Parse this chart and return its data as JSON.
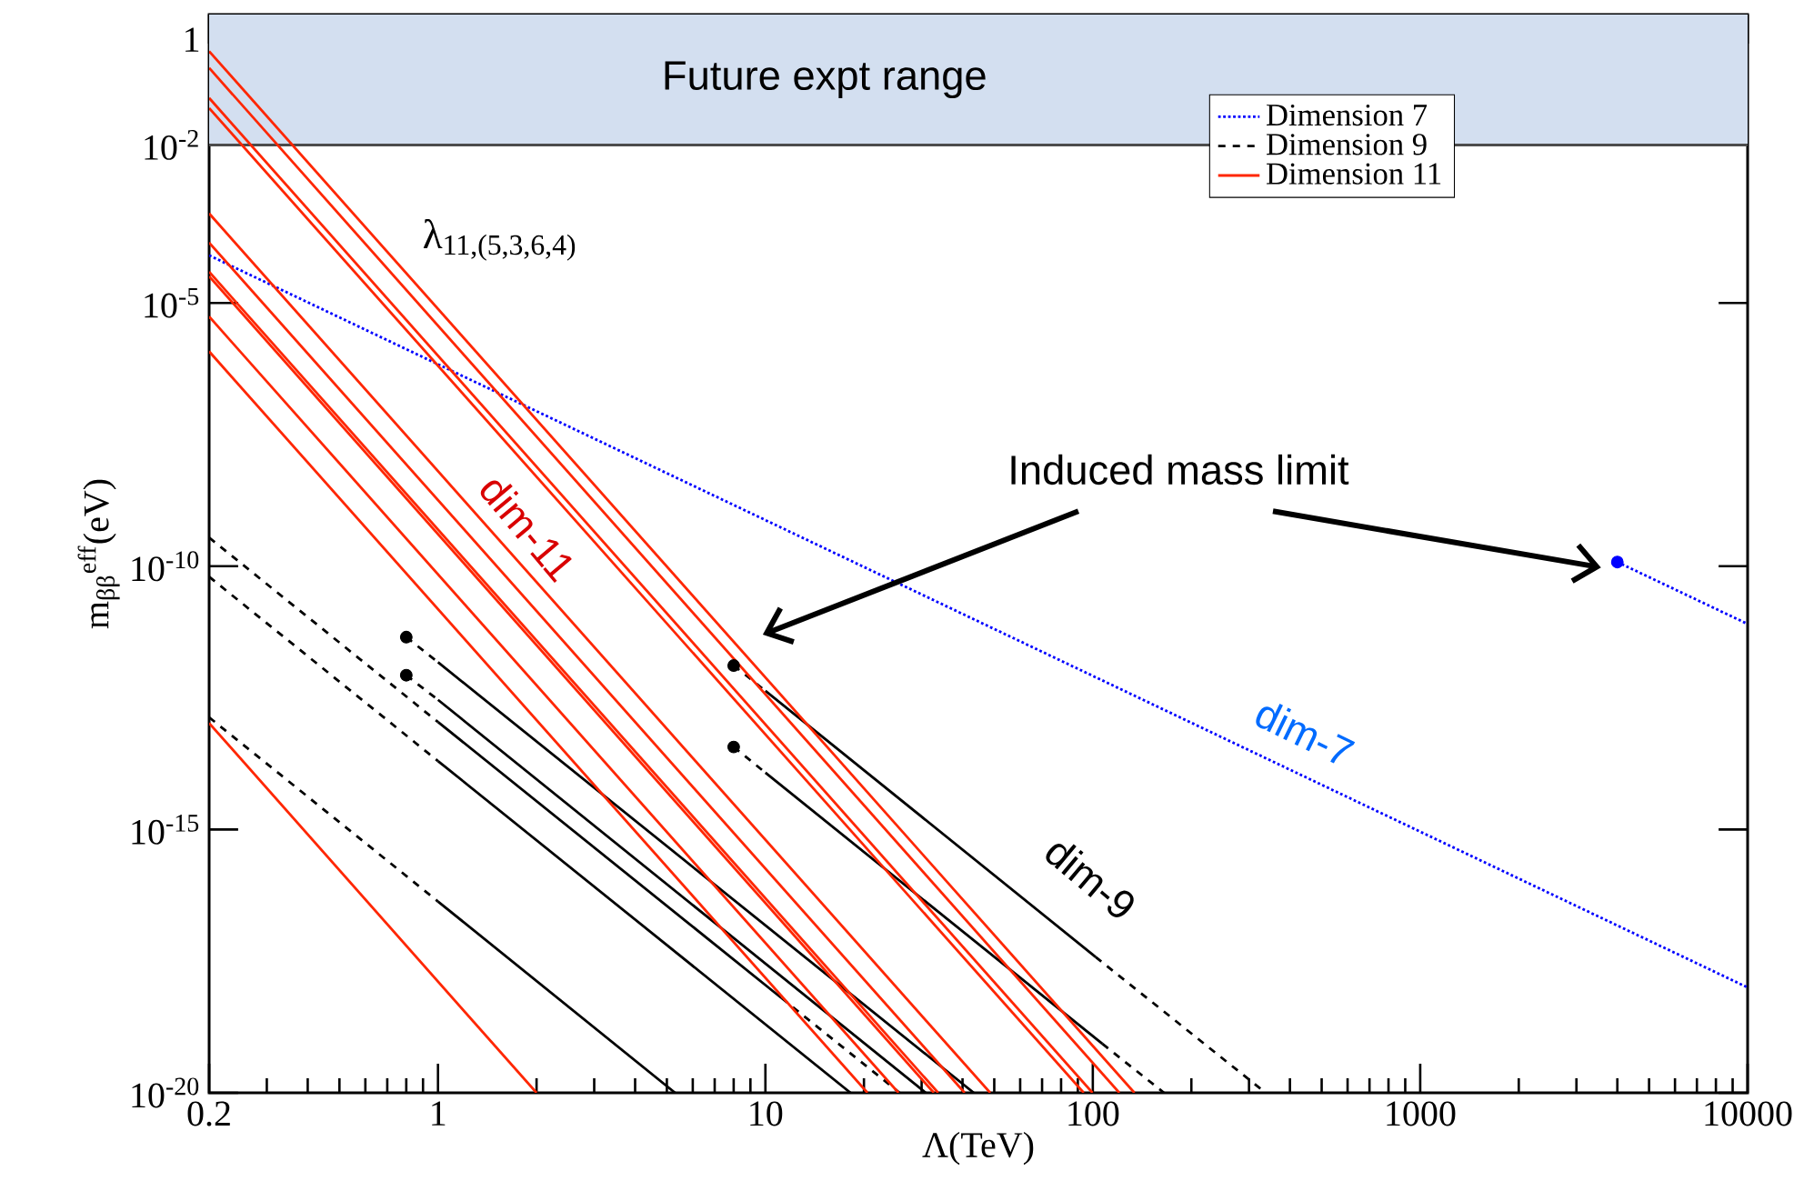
{
  "chart_data": {
    "type": "line",
    "xlabel": "Λ(TeV)",
    "ylabel": "m$_{ββ}$$^{eff}$(eV)",
    "log": "xy",
    "legend": "top right",
    "xlim": [
      0.2,
      10000
    ],
    "ylim": [
      1e-20,
      3
    ],
    "xticks": [
      0.2,
      1,
      10,
      100,
      1000,
      10000
    ],
    "yticks": [
      {
        "value": 1e-20,
        "label": "10$^{-20}$"
      },
      {
        "value": 1e-15,
        "label": "10$^{-15}$"
      },
      {
        "value": 1e-10,
        "label": "10$^{-10}$"
      },
      {
        "value": 1e-05,
        "label": "10$^{-5}$"
      },
      {
        "value": 0.01,
        "label": "10$^{-2}$"
      },
      1
    ],
    "bands": [
      {
        "axis": "y",
        "from": 0.01,
        "to": 3,
        "label": "Future expt range",
        "color": "#d3dff0"
      }
    ],
    "annotations": [
      "λ$_{11,(5,3,6,4)}$",
      "dim-11",
      "dim-7",
      "dim-9",
      "Induced mass limit"
    ],
    "series": [
      {
        "name": "Dimension 7",
        "color": "#0000ff",
        "line_style": "dotted",
        "x": [
          0.2,
          10000
        ],
        "values": [
          8e-05,
          1e-18
        ]
      },
      {
        "color": "#0000ff",
        "line_style": "dotted",
        "x": [
          4000,
          10000
        ],
        "values": [
          1.2e-10,
          8e-12
        ]
      },
      {
        "name": "Dimension 9",
        "color": "#000000",
        "line_style": "dashed",
        "x": [
          0.2,
          1
        ],
        "values": [
          3.5e-10,
          1.1e-13
        ]
      },
      {
        "color": "#000000",
        "line_style": "solid",
        "x": [
          1,
          11.2
        ],
        "values": [
          1.1e-13,
          6.3e-19
        ]
      },
      {
        "color": "#000000",
        "line_style": "dashed",
        "x": [
          11.2,
          25.7
        ],
        "values": [
          6.3e-19,
          1e-20
        ]
      },
      {
        "color": "#000000",
        "line_style": "dashed",
        "x": [
          0.2,
          1
        ],
        "values": [
          6.3e-11,
          2e-14
        ]
      },
      {
        "color": "#000000",
        "line_style": "solid",
        "x": [
          1,
          18.2
        ],
        "values": [
          2e-14,
          1e-20
        ]
      },
      {
        "color": "#000000",
        "line_style": "dashed",
        "x": [
          0.2,
          1
        ],
        "values": [
          1.35e-13,
          4.3e-17
        ]
      },
      {
        "color": "#000000",
        "line_style": "solid",
        "x": [
          1,
          5.3
        ],
        "values": [
          4.3e-17,
          1e-20
        ]
      },
      {
        "color": "#000000",
        "line_style": "dashed",
        "x": [
          0.8,
          1
        ],
        "values": [
          4.5e-12,
          1.5e-12
        ]
      },
      {
        "color": "#000000",
        "line_style": "solid",
        "x": [
          1,
          43.3
        ],
        "values": [
          1.5e-12,
          1e-20
        ]
      },
      {
        "color": "#000000",
        "line_style": "dashed",
        "x": [
          0.8,
          1
        ],
        "values": [
          8.5e-13,
          2.9e-13
        ]
      },
      {
        "color": "#000000",
        "line_style": "solid",
        "x": [
          1,
          30.9
        ],
        "values": [
          2.9e-13,
          1e-20
        ]
      },
      {
        "color": "#000000",
        "line_style": "dashed",
        "x": [
          8,
          10
        ],
        "values": [
          1.3e-12,
          4.3e-13
        ]
      },
      {
        "color": "#000000",
        "line_style": "solid",
        "x": [
          10,
          102
        ],
        "values": [
          4.3e-13,
          3.8e-18
        ]
      },
      {
        "color": "#000000",
        "line_style": "dashed",
        "x": [
          102,
          337
        ],
        "values": [
          3.8e-18,
          1e-20
        ]
      },
      {
        "color": "#000000",
        "line_style": "dashed",
        "x": [
          8,
          10
        ],
        "values": [
          3.7e-14,
          1.2e-14
        ]
      },
      {
        "color": "#000000",
        "line_style": "solid",
        "x": [
          10,
          107
        ],
        "values": [
          1.2e-14,
          8.5e-20
        ]
      },
      {
        "color": "#000000",
        "line_style": "dashed",
        "x": [
          107,
          165
        ],
        "values": [
          8.5e-20,
          1e-20
        ]
      },
      {
        "name": "Dimension 11",
        "color": "#ff2600",
        "line_style": "solid",
        "x": [
          0.2,
          134
        ],
        "values": [
          0.6,
          1e-20
        ]
      },
      {
        "color": "#ff2600",
        "line_style": "solid",
        "x": [
          0.2,
          120.5
        ],
        "values": [
          0.29,
          1e-20
        ]
      },
      {
        "color": "#ff2600",
        "line_style": "solid",
        "x": [
          0.2,
          99.8
        ],
        "values": [
          0.078,
          1e-20
        ]
      },
      {
        "color": "#ff2600",
        "line_style": "solid",
        "x": [
          0.2,
          93.8
        ],
        "values": [
          0.05,
          1e-20
        ]
      },
      {
        "color": "#ff2600",
        "line_style": "solid",
        "x": [
          0.2,
          48.6
        ],
        "values": [
          0.0005,
          1e-20
        ]
      },
      {
        "color": "#ff2600",
        "line_style": "solid",
        "x": [
          0.2,
          40.6
        ],
        "values": [
          0.00014,
          1e-20
        ]
      },
      {
        "color": "#ff2600",
        "line_style": "solid",
        "x": [
          0.2,
          33.7
        ],
        "values": [
          3.9e-05,
          1e-20
        ]
      },
      {
        "color": "#ff2600",
        "line_style": "solid",
        "x": [
          0.2,
          32.7
        ],
        "values": [
          3.2e-05,
          1e-20
        ]
      },
      {
        "color": "#ff2600",
        "line_style": "solid",
        "x": [
          0.2,
          25.5
        ],
        "values": [
          5.5e-06,
          1e-20
        ]
      },
      {
        "color": "#ff2600",
        "line_style": "solid",
        "x": [
          0.2,
          20.5
        ],
        "values": [
          1.2e-06,
          1e-20
        ]
      },
      {
        "color": "#ff2600",
        "line_style": "solid",
        "x": [
          0.2,
          2.0
        ],
        "values": [
          1.05e-13,
          1e-20
        ]
      },
      {
        "type": "scatter",
        "marker": "circle",
        "color": "#0000ff",
        "x": [
          4000
        ],
        "values": [
          1.2e-10
        ]
      },
      {
        "type": "scatter",
        "marker": "circle",
        "color": "#000000",
        "x": [
          0.8,
          0.8,
          8,
          8
        ],
        "values": [
          4.5e-12,
          8.5e-13,
          1.3e-12,
          3.7e-14
        ]
      }
    ]
  }
}
